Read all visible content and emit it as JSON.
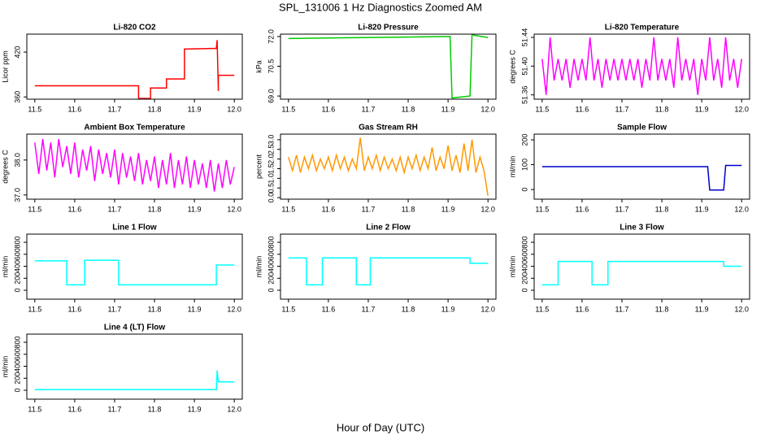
{
  "title": "SPL_131006  1 Hz Diagnostics Zoomed AM",
  "xlabel": "Hour of Day (UTC)",
  "chart_data": [
    {
      "type": "line",
      "title": "Li-820 CO2",
      "ylabel": "Licor ppm",
      "color": "#ff0000",
      "x": [
        11.5,
        11.76,
        11.76,
        11.79,
        11.79,
        11.83,
        11.83,
        11.875,
        11.875,
        11.955,
        11.957,
        11.96,
        11.96,
        12.0
      ],
      "values": [
        375,
        375,
        358,
        358,
        372,
        372,
        384,
        384,
        424,
        425,
        436,
        368,
        389,
        389
      ],
      "xlim": [
        11.48,
        12.02
      ],
      "xticks": [
        11.5,
        11.6,
        11.7,
        11.8,
        11.9,
        {
          "value": 12,
          "label": "12.0"
        }
      ],
      "ylim": [
        357,
        444
      ],
      "yticks": [
        360,
        420
      ]
    },
    {
      "type": "line",
      "title": "Li-820 Pressure",
      "ylabel": "kPa",
      "color": "#00cc00",
      "x": [
        11.5,
        11.7,
        11.9,
        11.905,
        11.91,
        11.955,
        11.96,
        11.97,
        12.0
      ],
      "values": [
        71.9,
        71.95,
        72.0,
        72.0,
        68.9,
        69.0,
        72.1,
        72.05,
        71.95
      ],
      "xlim": [
        11.48,
        12.02
      ],
      "xticks": [
        11.5,
        11.6,
        11.7,
        11.8,
        11.9,
        {
          "value": 12,
          "label": "12.0"
        }
      ],
      "ylim": [
        68.84,
        72.12
      ],
      "yticks": [
        {
          "value": 69,
          "label": "69.0"
        },
        70.5,
        {
          "value": 72,
          "label": "72.0"
        }
      ]
    },
    {
      "type": "line",
      "title": "Li-820 Temperature",
      "ylabel": "degrees C",
      "color": "#ff00ff",
      "x": [
        11.5,
        11.51,
        11.52,
        11.53,
        11.54,
        11.55,
        11.56,
        11.57,
        11.58,
        11.59,
        11.6,
        11.61,
        11.62,
        11.63,
        11.64,
        11.65,
        11.66,
        11.67,
        11.68,
        11.69,
        11.7,
        11.71,
        11.72,
        11.73,
        11.74,
        11.75,
        11.76,
        11.77,
        11.78,
        11.79,
        11.8,
        11.81,
        11.82,
        11.83,
        11.84,
        11.85,
        11.86,
        11.87,
        11.88,
        11.89,
        11.9,
        11.91,
        11.92,
        11.93,
        11.94,
        11.95,
        11.96,
        11.97,
        11.98,
        11.99,
        12.0
      ],
      "values": [
        51.41,
        51.36,
        51.44,
        51.38,
        51.41,
        51.38,
        51.41,
        51.37,
        51.41,
        51.38,
        51.41,
        51.38,
        51.44,
        51.38,
        51.41,
        51.37,
        51.41,
        51.38,
        51.41,
        51.38,
        51.41,
        51.38,
        51.41,
        51.38,
        51.41,
        51.37,
        51.41,
        51.38,
        51.44,
        51.38,
        51.41,
        51.38,
        51.41,
        51.37,
        51.44,
        51.38,
        51.41,
        51.38,
        51.41,
        51.36,
        51.41,
        51.38,
        51.44,
        51.38,
        51.41,
        51.37,
        51.44,
        51.38,
        51.41,
        51.37,
        51.41
      ],
      "xlim": [
        11.48,
        12.02
      ],
      "xticks": [
        11.5,
        11.6,
        11.7,
        11.8,
        11.9,
        {
          "value": 12,
          "label": "12.0"
        }
      ],
      "ylim": [
        51.354,
        51.4445
      ],
      "yticks": [
        51.36,
        {
          "value": 51.4,
          "label": "51.40"
        },
        51.44
      ]
    },
    {
      "type": "line",
      "title": "Ambient Box Temperature",
      "ylabel": "degrees C",
      "color": "#ff00ff",
      "x": [
        11.5,
        11.51,
        11.52,
        11.53,
        11.54,
        11.55,
        11.56,
        11.57,
        11.58,
        11.59,
        11.6,
        11.61,
        11.62,
        11.63,
        11.64,
        11.65,
        11.66,
        11.67,
        11.68,
        11.69,
        11.7,
        11.71,
        11.72,
        11.73,
        11.74,
        11.75,
        11.76,
        11.77,
        11.78,
        11.79,
        11.8,
        11.81,
        11.82,
        11.83,
        11.84,
        11.85,
        11.86,
        11.87,
        11.88,
        11.89,
        11.9,
        11.91,
        11.92,
        11.93,
        11.94,
        11.95,
        11.96,
        11.97,
        11.98,
        11.99,
        12.0
      ],
      "values": [
        38.5,
        37.6,
        38.6,
        37.7,
        38.5,
        37.5,
        38.6,
        37.8,
        38.4,
        37.6,
        38.5,
        37.5,
        38.3,
        37.7,
        38.4,
        37.4,
        38.3,
        37.6,
        38.2,
        37.5,
        38.3,
        37.3,
        38.2,
        37.5,
        38.1,
        37.4,
        38.2,
        37.3,
        38.0,
        37.4,
        38.1,
        37.2,
        38.0,
        37.3,
        38.2,
        37.2,
        38.0,
        37.3,
        38.1,
        37.2,
        38.0,
        37.3,
        37.9,
        37.2,
        38.0,
        37.1,
        37.9,
        37.2,
        38.0,
        37.3,
        37.8
      ],
      "xlim": [
        11.48,
        12.02
      ],
      "xticks": [
        11.5,
        11.6,
        11.7,
        11.8,
        11.9,
        {
          "value": 12,
          "label": "12.0"
        }
      ],
      "ylim": [
        36.88,
        38.74
      ],
      "yticks": [
        {
          "value": 37,
          "label": "37.0"
        },
        {
          "value": 38,
          "label": "38.0"
        }
      ]
    },
    {
      "type": "line",
      "title": "Gas Stream RH",
      "ylabel": "percent",
      "color": "#ff9900",
      "x": [
        11.5,
        11.51,
        11.52,
        11.53,
        11.54,
        11.55,
        11.56,
        11.57,
        11.58,
        11.59,
        11.6,
        11.61,
        11.62,
        11.63,
        11.64,
        11.65,
        11.66,
        11.67,
        11.68,
        11.69,
        11.7,
        11.71,
        11.72,
        11.73,
        11.74,
        11.75,
        11.76,
        11.77,
        11.78,
        11.79,
        11.8,
        11.81,
        11.82,
        11.83,
        11.84,
        11.85,
        11.86,
        11.87,
        11.88,
        11.89,
        11.9,
        11.91,
        11.92,
        11.93,
        11.94,
        11.95,
        11.96,
        11.97,
        11.98,
        11.99,
        12.0
      ],
      "values": [
        2.1,
        1.4,
        2.2,
        1.3,
        2.1,
        1.5,
        2.2,
        1.4,
        2.0,
        1.5,
        2.1,
        1.4,
        2.2,
        1.5,
        2.1,
        1.4,
        2.0,
        1.5,
        3.1,
        1.4,
        2.1,
        1.5,
        2.2,
        1.4,
        2.1,
        1.5,
        2.0,
        1.4,
        2.1,
        1.3,
        2.1,
        1.5,
        2.2,
        1.4,
        2.1,
        1.5,
        2.6,
        1.4,
        2.1,
        1.5,
        2.7,
        1.4,
        2.2,
        1.3,
        2.8,
        1.4,
        3.0,
        1.3,
        2.1,
        1.4,
        0.1
      ],
      "xlim": [
        11.48,
        12.02
      ],
      "xticks": [
        11.5,
        11.6,
        11.7,
        11.8,
        11.9,
        {
          "value": 12,
          "label": "12.0"
        }
      ],
      "ylim": [
        -0.08,
        3.29
      ],
      "yticks": [
        {
          "value": 0,
          "label": "0.0"
        },
        0.5,
        {
          "value": 1,
          "label": "1.0"
        },
        1.5,
        {
          "value": 2,
          "label": "2.0"
        },
        2.5,
        {
          "value": 3,
          "label": "3.0"
        }
      ]
    },
    {
      "type": "line",
      "title": "Sample Flow",
      "ylabel": "ml/min",
      "color": "#0000cc",
      "x": [
        11.5,
        11.915,
        11.92,
        11.955,
        11.96,
        12.0
      ],
      "values": [
        92,
        92,
        -2,
        -2,
        97,
        97
      ],
      "xlim": [
        11.48,
        12.02
      ],
      "xticks": [
        11.5,
        11.6,
        11.7,
        11.8,
        11.9,
        {
          "value": 12,
          "label": "12.0"
        }
      ],
      "ylim": [
        -39,
        223
      ],
      "yticks": [
        0,
        100,
        200
      ]
    },
    {
      "type": "line",
      "title": "Line 1 Flow",
      "ylabel": "ml/min",
      "color": "#00ffff",
      "x": [
        11.5,
        11.58,
        11.58,
        11.625,
        11.625,
        11.71,
        11.71,
        11.955,
        11.955,
        12.0
      ],
      "values": [
        490,
        490,
        90,
        90,
        500,
        500,
        90,
        90,
        420,
        420
      ],
      "xlim": [
        11.48,
        12.02
      ],
      "xticks": [
        11.5,
        11.6,
        11.7,
        11.8,
        11.9,
        {
          "value": 12,
          "label": "12.0"
        }
      ],
      "ylim": [
        -149,
        936
      ],
      "yticks": [
        0,
        200,
        400,
        600,
        800
      ]
    },
    {
      "type": "line",
      "title": "Line 2 Flow",
      "ylabel": "ml/min",
      "color": "#00ffff",
      "x": [
        11.5,
        11.545,
        11.545,
        11.585,
        11.585,
        11.67,
        11.67,
        11.705,
        11.705,
        11.955,
        11.955,
        12.0
      ],
      "values": [
        540,
        540,
        90,
        90,
        540,
        540,
        90,
        90,
        540,
        540,
        450,
        450
      ],
      "xlim": [
        11.48,
        12.02
      ],
      "xticks": [
        11.5,
        11.6,
        11.7,
        11.8,
        11.9,
        {
          "value": 12,
          "label": "12.0"
        }
      ],
      "ylim": [
        -149,
        936
      ],
      "yticks": [
        0,
        200,
        400,
        600,
        800
      ]
    },
    {
      "type": "line",
      "title": "Line 3 Flow",
      "ylabel": "ml/min",
      "color": "#00ffff",
      "x": [
        11.5,
        11.54,
        11.54,
        11.625,
        11.625,
        11.665,
        11.665,
        11.955,
        11.955,
        12.0
      ],
      "values": [
        90,
        90,
        480,
        480,
        90,
        90,
        480,
        480,
        400,
        400
      ],
      "xlim": [
        11.48,
        12.02
      ],
      "xticks": [
        11.5,
        11.6,
        11.7,
        11.8,
        11.9,
        {
          "value": 12,
          "label": "12.0"
        }
      ],
      "ylim": [
        -149,
        936
      ],
      "yticks": [
        0,
        200,
        400,
        600,
        800
      ]
    },
    {
      "type": "line",
      "title": "Line 4 (LT) Flow",
      "ylabel": "ml/min",
      "color": "#00ffff",
      "x": [
        11.5,
        11.955,
        11.957,
        11.96,
        12.0
      ],
      "values": [
        10,
        10,
        330,
        140,
        140
      ],
      "xlim": [
        11.48,
        12.02
      ],
      "xticks": [
        11.5,
        11.6,
        11.7,
        11.8,
        11.9,
        {
          "value": 12,
          "label": "12.0"
        }
      ],
      "ylim": [
        -149,
        936
      ],
      "yticks": [
        0,
        200,
        400,
        600,
        800
      ]
    }
  ]
}
